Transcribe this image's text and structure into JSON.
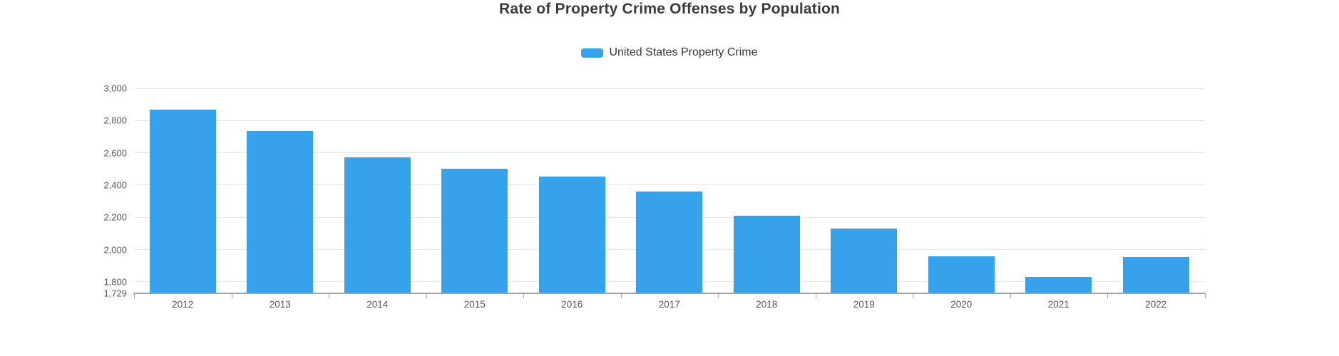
{
  "title": "Rate of Property Crime Offenses by Population",
  "legend": {
    "label": "United States Property Crime",
    "marker_color": "#36a2eb"
  },
  "chart_data": {
    "type": "bar",
    "title": "Rate of Property Crime Offenses by Population",
    "xlabel": "",
    "ylabel": "",
    "categories": [
      "2012",
      "2013",
      "2014",
      "2015",
      "2016",
      "2017",
      "2018",
      "2019",
      "2020",
      "2021",
      "2022"
    ],
    "series": [
      {
        "name": "United States Property Crime",
        "color": "#36a2eb",
        "values": [
          2868,
          2733.6,
          2574.1,
          2500.5,
          2450.7,
          2362.2,
          2209.8,
          2130.6,
          1958.2,
          1832.3,
          1954.4
        ]
      }
    ],
    "ylim": [
      1729,
      3000
    ],
    "y_axis": {
      "ticks": [
        {
          "value": 3000,
          "label": "3,000"
        },
        {
          "value": 2800,
          "label": "2,800"
        },
        {
          "value": 2600,
          "label": "2,600"
        },
        {
          "value": 2400,
          "label": "2,400"
        },
        {
          "value": 2200,
          "label": "2,200"
        },
        {
          "value": 2000,
          "label": "2,000"
        },
        {
          "value": 1800,
          "label": "1,800"
        }
      ],
      "min_tick": {
        "value": 1729,
        "label": "1,729"
      }
    },
    "grid": true,
    "legend_position": "top-center",
    "colors": {
      "bar": "#36a2eb",
      "gridline": "#e4eaf2",
      "axis": "#a3a3a3",
      "tick_label": "#595959",
      "title": "#3b3b3b",
      "background": "#ffffff"
    }
  }
}
